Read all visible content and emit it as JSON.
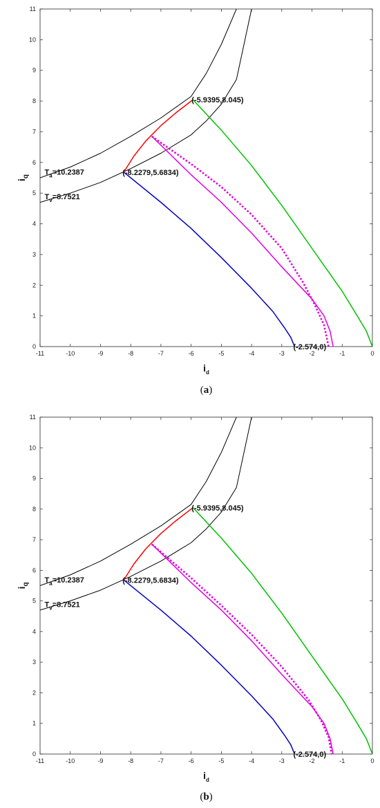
{
  "chart_data": [
    {
      "type": "line",
      "caption_letter": "a",
      "xlabel": {
        "main": "i",
        "sub": "d"
      },
      "ylabel": {
        "main": "i",
        "sub": "q"
      },
      "xlim": [
        -11,
        0
      ],
      "ylim": [
        0,
        11
      ],
      "xticks": [
        -11,
        -10,
        -9,
        -8,
        -7,
        -6,
        -5,
        -4,
        -3,
        -2,
        -1,
        0
      ],
      "yticks": [
        0,
        1,
        2,
        3,
        4,
        5,
        6,
        7,
        8,
        9,
        10,
        11
      ],
      "grid": false,
      "annotations": [
        {
          "text": "(-5.9395,8.045)",
          "x": -5.9395,
          "y": 8.045
        },
        {
          "text": "(-8.2279,5.6834)",
          "x": -8.2279,
          "y": 5.6834
        },
        {
          "text": "(-2.574,0)",
          "x": -2.574,
          "y": 0
        }
      ],
      "curve_labels": [
        {
          "main": "T",
          "sub": "a",
          "rest": "=10.2387",
          "x": -10.85,
          "y": 5.6
        },
        {
          "main": "T",
          "sub": "v",
          "rest": "=8.7521",
          "x": -10.85,
          "y": 4.8
        }
      ],
      "series": [
        {
          "color": "#000000",
          "style": "solid",
          "x": [
            -11,
            -10,
            -9,
            -8,
            -7,
            -6,
            -5.5,
            -5,
            -4.5
          ],
          "y": [
            5.5,
            5.85,
            6.3,
            6.85,
            7.45,
            8.15,
            8.9,
            9.85,
            11
          ]
        },
        {
          "color": "#000000",
          "style": "solid",
          "x": [
            -11,
            -10,
            -9,
            -8,
            -7,
            -6,
            -5.5,
            -5,
            -4.5,
            -4
          ],
          "y": [
            4.7,
            5.0,
            5.35,
            5.8,
            6.3,
            6.9,
            7.35,
            7.9,
            8.7,
            11
          ]
        },
        {
          "color": "#ff0000",
          "style": "solid",
          "x": [
            -8.2279,
            -7.9,
            -7.5,
            -7.0,
            -6.5,
            -5.9395
          ],
          "y": [
            5.6834,
            6.2,
            6.7,
            7.2,
            7.62,
            8.045
          ]
        },
        {
          "color": "#00c000",
          "style": "solid",
          "x": [
            -5.9395,
            -5,
            -4,
            -3,
            -2,
            -1,
            -0.5,
            -0.2,
            0
          ],
          "y": [
            8.045,
            7.05,
            5.9,
            4.6,
            3.2,
            1.8,
            1.0,
            0.5,
            0
          ]
        },
        {
          "color": "#0000c0",
          "style": "solid",
          "x": [
            -8.2279,
            -7,
            -6,
            -5,
            -4,
            -3.3,
            -2.9,
            -2.7,
            -2.574
          ],
          "y": [
            5.6834,
            4.7,
            3.85,
            2.9,
            1.9,
            1.15,
            0.6,
            0.3,
            0
          ]
        },
        {
          "color": "#e000e0",
          "style": "solid",
          "x": [
            -7.3,
            -6,
            -5,
            -4,
            -3,
            -2,
            -1.6,
            -1.4,
            -1.3
          ],
          "y": [
            6.85,
            5.6,
            4.7,
            3.7,
            2.6,
            1.55,
            1.0,
            0.5,
            0
          ]
        },
        {
          "color": "#e000e0",
          "style": "dotted",
          "x": [
            -7.3,
            -6,
            -5,
            -4,
            -3,
            -2.3,
            -1.9,
            -1.6,
            -1.45
          ],
          "y": [
            6.85,
            5.95,
            5.2,
            4.3,
            3.2,
            2.1,
            1.35,
            0.7,
            0
          ]
        }
      ]
    },
    {
      "type": "line",
      "caption_letter": "b",
      "xlabel": {
        "main": "i",
        "sub": "d"
      },
      "ylabel": {
        "main": "i",
        "sub": "q"
      },
      "xlim": [
        -11,
        0
      ],
      "ylim": [
        0,
        11
      ],
      "xticks": [
        -11,
        -10,
        -9,
        -8,
        -7,
        -6,
        -5,
        -4,
        -3,
        -2,
        -1,
        0
      ],
      "yticks": [
        0,
        1,
        2,
        3,
        4,
        5,
        6,
        7,
        8,
        9,
        10,
        11
      ],
      "grid": false,
      "annotations": [
        {
          "text": "(-5.9395,8.045)",
          "x": -5.9395,
          "y": 8.045
        },
        {
          "text": "(-8.2279,5.6834)",
          "x": -8.2279,
          "y": 5.6834
        },
        {
          "text": "(-2.574,0)",
          "x": -2.574,
          "y": 0
        }
      ],
      "curve_labels": [
        {
          "main": "T",
          "sub": "a",
          "rest": "=10.2387",
          "x": -10.85,
          "y": 5.6
        },
        {
          "main": "T",
          "sub": "v",
          "rest": "=8.7521",
          "x": -10.85,
          "y": 4.8
        }
      ],
      "series": [
        {
          "color": "#000000",
          "style": "solid",
          "x": [
            -11,
            -10,
            -9,
            -8,
            -7,
            -6,
            -5.5,
            -5,
            -4.5
          ],
          "y": [
            5.5,
            5.85,
            6.3,
            6.85,
            7.45,
            8.15,
            8.9,
            9.85,
            11
          ]
        },
        {
          "color": "#000000",
          "style": "solid",
          "x": [
            -11,
            -10,
            -9,
            -8,
            -7,
            -6,
            -5.5,
            -5,
            -4.5,
            -4
          ],
          "y": [
            4.7,
            5.0,
            5.35,
            5.8,
            6.3,
            6.9,
            7.35,
            7.9,
            8.7,
            11
          ]
        },
        {
          "color": "#ff0000",
          "style": "solid",
          "x": [
            -8.2279,
            -7.9,
            -7.5,
            -7.0,
            -6.5,
            -5.9395
          ],
          "y": [
            5.6834,
            6.2,
            6.7,
            7.2,
            7.62,
            8.045
          ]
        },
        {
          "color": "#00c000",
          "style": "solid",
          "x": [
            -5.9395,
            -5,
            -4,
            -3,
            -2,
            -1,
            -0.5,
            -0.2,
            0
          ],
          "y": [
            8.045,
            7.05,
            5.9,
            4.6,
            3.2,
            1.8,
            1.0,
            0.5,
            0
          ]
        },
        {
          "color": "#0000c0",
          "style": "solid",
          "x": [
            -8.2279,
            -7,
            -6,
            -5,
            -4,
            -3.3,
            -2.9,
            -2.7,
            -2.574
          ],
          "y": [
            5.6834,
            4.7,
            3.85,
            2.9,
            1.9,
            1.15,
            0.6,
            0.3,
            0
          ]
        },
        {
          "color": "#e000e0",
          "style": "solid",
          "x": [
            -7.3,
            -6,
            -5,
            -4,
            -3,
            -2,
            -1.6,
            -1.4,
            -1.3
          ],
          "y": [
            6.85,
            5.6,
            4.7,
            3.7,
            2.6,
            1.55,
            1.0,
            0.5,
            0
          ]
        },
        {
          "color": "#e000e0",
          "style": "dotted",
          "x": [
            -7.3,
            -6,
            -5,
            -4,
            -3,
            -2.1,
            -1.7,
            -1.45,
            -1.35
          ],
          "y": [
            6.85,
            5.75,
            4.85,
            3.9,
            2.85,
            1.75,
            1.1,
            0.55,
            0
          ]
        }
      ]
    }
  ]
}
